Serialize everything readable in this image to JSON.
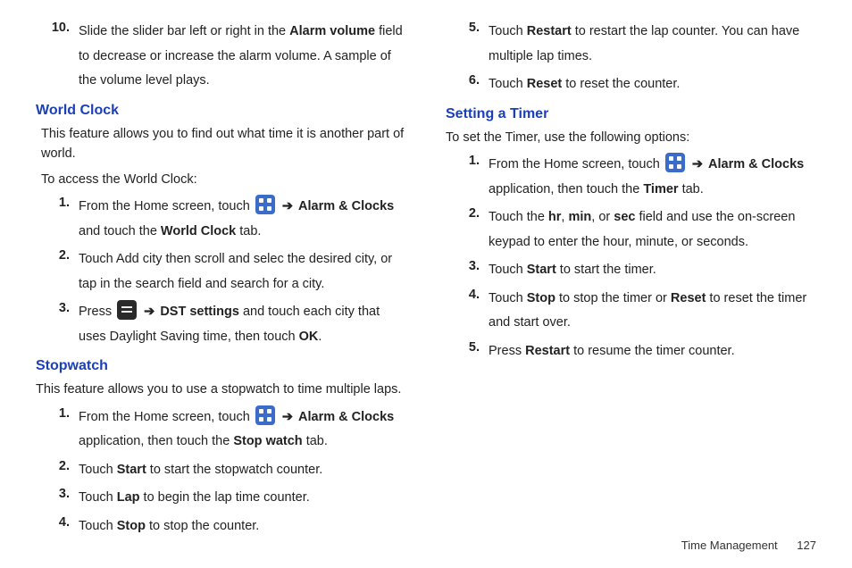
{
  "colors": {
    "heading": "#1a3fb8",
    "text": "#222222",
    "icon_bg": "#3b6cc9"
  },
  "left": {
    "step10": {
      "num": "10.",
      "parts": [
        "Slide the slider bar left or right in the ",
        "Alarm volume",
        " field to decrease or increase the alarm volume. A sample of the volume level plays."
      ]
    },
    "world_clock": {
      "heading": "World Clock",
      "intro1": "This feature allows you to find out what time it is another part of world.",
      "intro2": "To access the World Clock:",
      "s1": {
        "num": "1.",
        "pre": "From the Home screen, touch ",
        "arrow": "➔",
        "b1": "Alarm & Clocks",
        "mid": " and touch the ",
        "b2": "World Clock",
        "post": " tab."
      },
      "s2": {
        "num": "2.",
        "text": "Touch Add city then scroll and selec the desired city, or tap in the search field and search for a city."
      },
      "s3": {
        "num": "3.",
        "pre": "Press ",
        "arrow": "➔",
        "b1": "DST settings",
        "mid": " and touch each city that uses Daylight Saving time, then touch ",
        "b2": "OK",
        "post": "."
      }
    },
    "stopwatch": {
      "heading": "Stopwatch",
      "intro": "This feature allows you to use a stopwatch to time multiple laps.",
      "s1": {
        "num": "1.",
        "pre": "From the Home screen, touch ",
        "arrow": "➔",
        "b1": "Alarm & Clocks",
        "mid": " application, then touch the ",
        "b2": "Stop watch",
        "post": " tab."
      },
      "s2": {
        "num": "2.",
        "pre": "Touch ",
        "b1": "Start",
        "post": " to start the stopwatch counter."
      },
      "s3": {
        "num": "3.",
        "pre": "Touch ",
        "b1": "Lap",
        "post": " to begin the lap time counter."
      },
      "s4": {
        "num": "4.",
        "pre": "Touch ",
        "b1": "Stop",
        "post": " to stop the counter."
      }
    }
  },
  "right": {
    "s5": {
      "num": "5.",
      "pre": "Touch ",
      "b1": "Restart",
      "post": " to restart the lap counter. You can have multiple lap times."
    },
    "s6": {
      "num": "6.",
      "pre": "Touch ",
      "b1": "Reset",
      "post": " to reset the counter."
    },
    "timer": {
      "heading": "Setting a Timer",
      "intro": "To set the Timer, use the following options:",
      "s1": {
        "num": "1.",
        "pre": "From the Home screen, touch ",
        "arrow": "➔",
        "b1": "Alarm & Clocks",
        "mid": " application, then touch the ",
        "b2": "Timer",
        "post": " tab."
      },
      "s2": {
        "num": "2.",
        "pre": "Touch the ",
        "b1": "hr",
        "c1": ", ",
        "b2": "min",
        "c2": ", or ",
        "b3": "sec",
        "post": " field and use the on-screen keypad to enter the hour, minute, or seconds."
      },
      "s3": {
        "num": "3.",
        "pre": "Touch ",
        "b1": "Start",
        "post": " to start the timer."
      },
      "s4": {
        "num": "4.",
        "pre": "Touch ",
        "b1": "Stop",
        "post1": " to stop the timer or ",
        "b2": "Reset",
        "post2": " to reset the timer and start over."
      },
      "s5": {
        "num": "5.",
        "pre": "Press ",
        "b1": "Restart",
        "post": " to resume the timer counter."
      }
    }
  },
  "footer": {
    "section": "Time Management",
    "page": "127"
  }
}
